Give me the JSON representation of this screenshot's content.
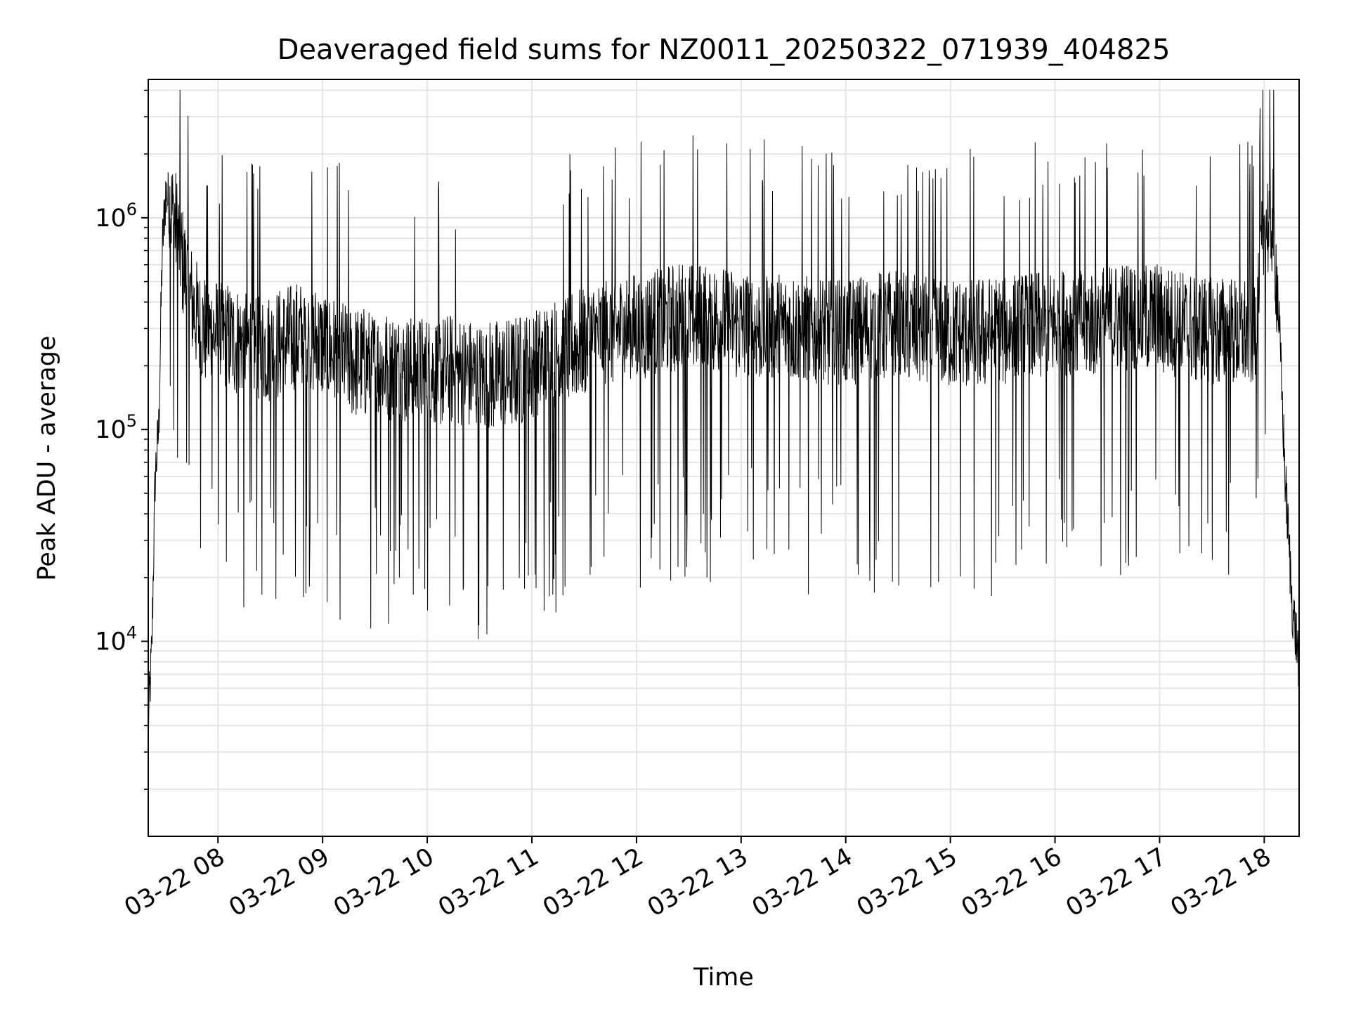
{
  "chart_data": {
    "type": "line",
    "title": "Deaveraged field sums for NZ0011_20250322_071939_404825",
    "xlabel": "Time",
    "ylabel": "Peak ADU - average",
    "yscale": "log",
    "xlim": [
      "2025-03-22 07:20",
      "2025-03-22 18:20"
    ],
    "ylim": [
      1200,
      4500000
    ],
    "grid": "on (major and minor, light gray)",
    "x_ticks": [
      "03-22 08",
      "03-22 09",
      "03-22 10",
      "03-22 11",
      "03-22 12",
      "03-22 13",
      "03-22 14",
      "03-22 15",
      "03-22 16",
      "03-22 17",
      "03-22 18"
    ],
    "y_ticks": [
      {
        "base": "10",
        "exp": "4",
        "value": 10000
      },
      {
        "base": "10",
        "exp": "5",
        "value": 100000
      },
      {
        "base": "10",
        "exp": "6",
        "value": 1000000
      }
    ],
    "line_color": "#000000",
    "series": [
      {
        "x": [
          "2025-03-22 07:20",
          "2025-03-22 07:22",
          "2025-03-22 07:24",
          "2025-03-22 07:26",
          "2025-03-22 07:28",
          "2025-03-22 07:30",
          "2025-03-22 07:33",
          "2025-03-22 07:36",
          "2025-03-22 07:40",
          "2025-03-22 07:45",
          "2025-03-22 07:50",
          "2025-03-22 08:00",
          "2025-03-22 08:10",
          "2025-03-22 08:20",
          "2025-03-22 08:30",
          "2025-03-22 08:40",
          "2025-03-22 08:50",
          "2025-03-22 09:00",
          "2025-03-22 09:15",
          "2025-03-22 09:30",
          "2025-03-22 09:45",
          "2025-03-22 10:00",
          "2025-03-22 10:15",
          "2025-03-22 10:30",
          "2025-03-22 10:45",
          "2025-03-22 11:00",
          "2025-03-22 11:15",
          "2025-03-22 11:30",
          "2025-03-22 11:45",
          "2025-03-22 12:00",
          "2025-03-22 12:15",
          "2025-03-22 12:30",
          "2025-03-22 12:45",
          "2025-03-22 13:00",
          "2025-03-22 13:15",
          "2025-03-22 13:30",
          "2025-03-22 13:45",
          "2025-03-22 14:00",
          "2025-03-22 14:15",
          "2025-03-22 14:30",
          "2025-03-22 14:45",
          "2025-03-22 15:00",
          "2025-03-22 15:15",
          "2025-03-22 15:30",
          "2025-03-22 15:45",
          "2025-03-22 16:00",
          "2025-03-22 16:15",
          "2025-03-22 16:30",
          "2025-03-22 16:45",
          "2025-03-22 17:00",
          "2025-03-22 17:15",
          "2025-03-22 17:30",
          "2025-03-22 17:45",
          "2025-03-22 17:55",
          "2025-03-22 18:00",
          "2025-03-22 18:05",
          "2025-03-22 18:08",
          "2025-03-22 18:12",
          "2025-03-22 18:16",
          "2025-03-22 18:20"
        ],
        "y": [
          4000,
          9000,
          60000,
          100000,
          700000,
          1300000,
          1100000,
          900000,
          600000,
          400000,
          300000,
          280000,
          260000,
          250000,
          240000,
          260000,
          280000,
          250000,
          210000,
          200000,
          190000,
          185000,
          190000,
          175000,
          180000,
          195000,
          230000,
          260000,
          290000,
          300000,
          320000,
          340000,
          330000,
          310000,
          300000,
          300000,
          290000,
          280000,
          300000,
          310000,
          290000,
          285000,
          280000,
          290000,
          300000,
          310000,
          320000,
          330000,
          340000,
          330000,
          300000,
          290000,
          280000,
          300000,
          900000,
          1000000,
          400000,
          60000,
          15000,
          8000
        ]
      }
    ]
  }
}
